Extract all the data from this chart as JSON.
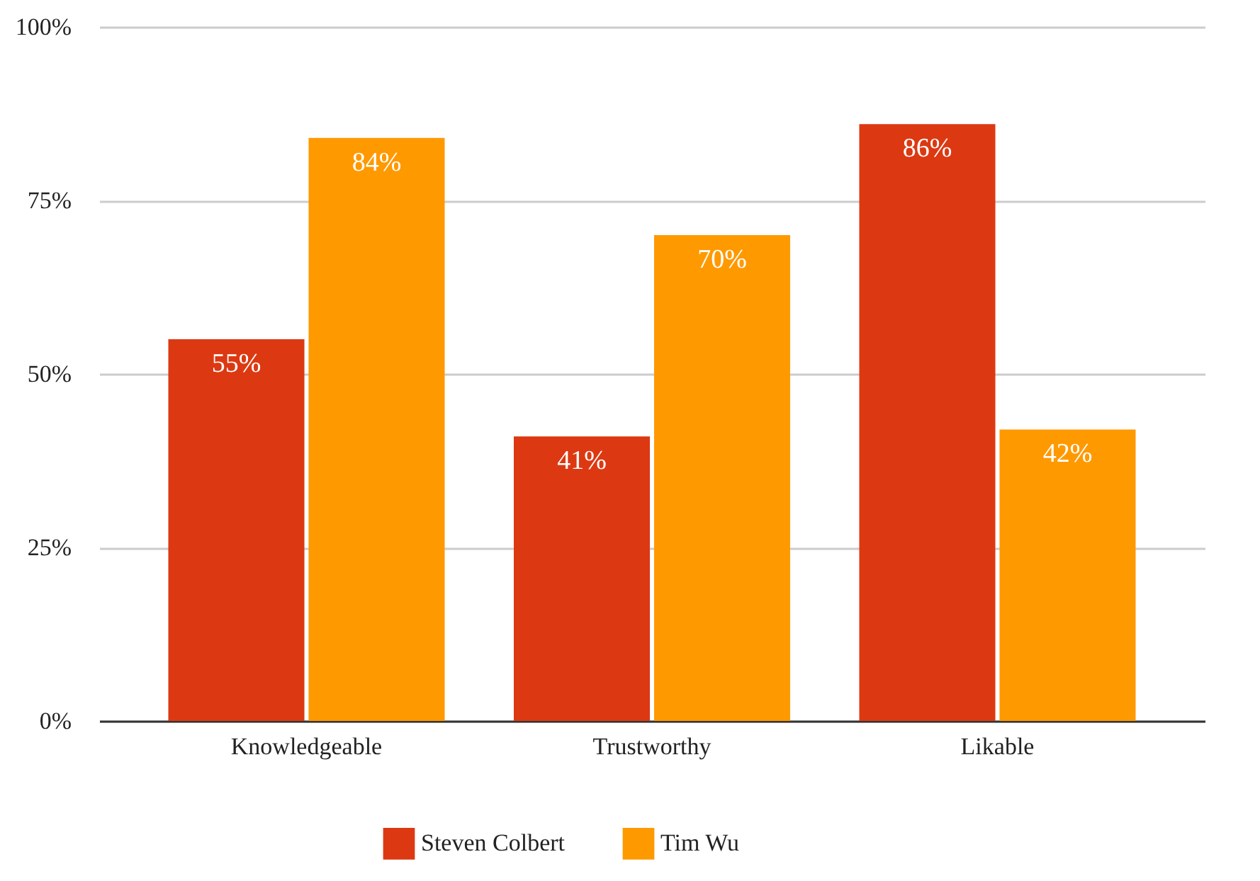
{
  "chart_data": {
    "type": "bar",
    "categories": [
      "Knowledgeable",
      "Trustworthy",
      "Likable"
    ],
    "series": [
      {
        "name": "Steven Colbert",
        "color": "#dc3912",
        "values": [
          55,
          41,
          86
        ],
        "value_labels": [
          "55%",
          "41%",
          "86%"
        ]
      },
      {
        "name": "Tim Wu",
        "color": "#ff9900",
        "values": [
          84,
          70,
          42
        ],
        "value_labels": [
          "84%",
          "70%",
          "42%"
        ]
      }
    ],
    "ylim": [
      0,
      100
    ],
    "yticks": [
      {
        "value": 0,
        "label": "0%"
      },
      {
        "value": 25,
        "label": "25%"
      },
      {
        "value": 50,
        "label": "50%"
      },
      {
        "value": 75,
        "label": "75%"
      },
      {
        "value": 100,
        "label": "100%"
      }
    ],
    "grid": "y",
    "legend": "bottom"
  }
}
